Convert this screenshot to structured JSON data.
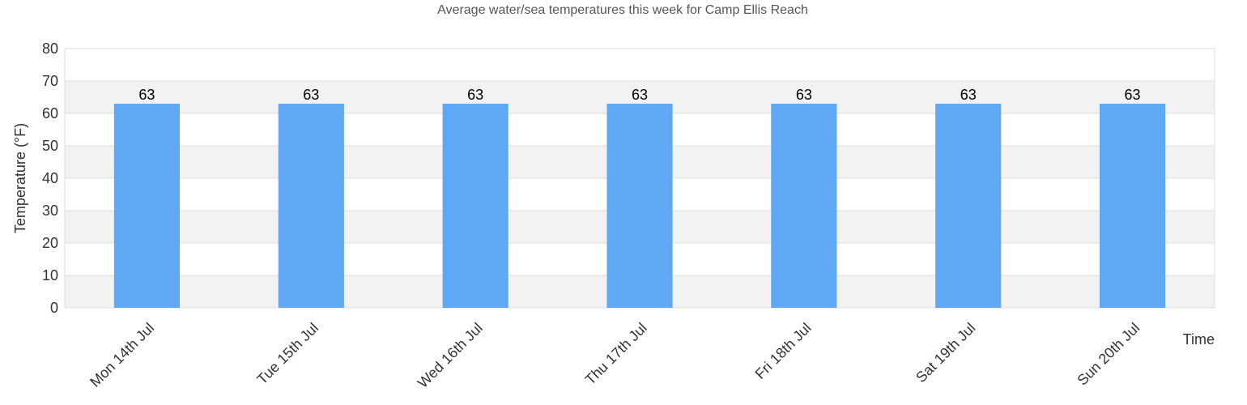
{
  "chart_data": {
    "type": "bar",
    "title": "Average water/sea temperatures this week for Camp Ellis Reach",
    "xlabel": "Time",
    "ylabel": "Temperature (°F)",
    "categories": [
      "Mon 14th Jul",
      "Tue 15th Jul",
      "Wed 16th Jul",
      "Thu 17th Jul",
      "Fri 18th Jul",
      "Sat 19th Jul",
      "Sun 20th Jul"
    ],
    "values": [
      63,
      63,
      63,
      63,
      63,
      63,
      63
    ],
    "data_labels": [
      "63",
      "63",
      "63",
      "63",
      "63",
      "63",
      "63"
    ],
    "ylim": [
      0,
      80
    ],
    "yticks": [
      0,
      10,
      20,
      30,
      40,
      50,
      60,
      70,
      80
    ],
    "grid": true,
    "colors": {
      "bar": "#61a8f4",
      "band_alt": "#f2f2f2",
      "band": "#ffffff",
      "gridline": "#dddddd"
    }
  }
}
